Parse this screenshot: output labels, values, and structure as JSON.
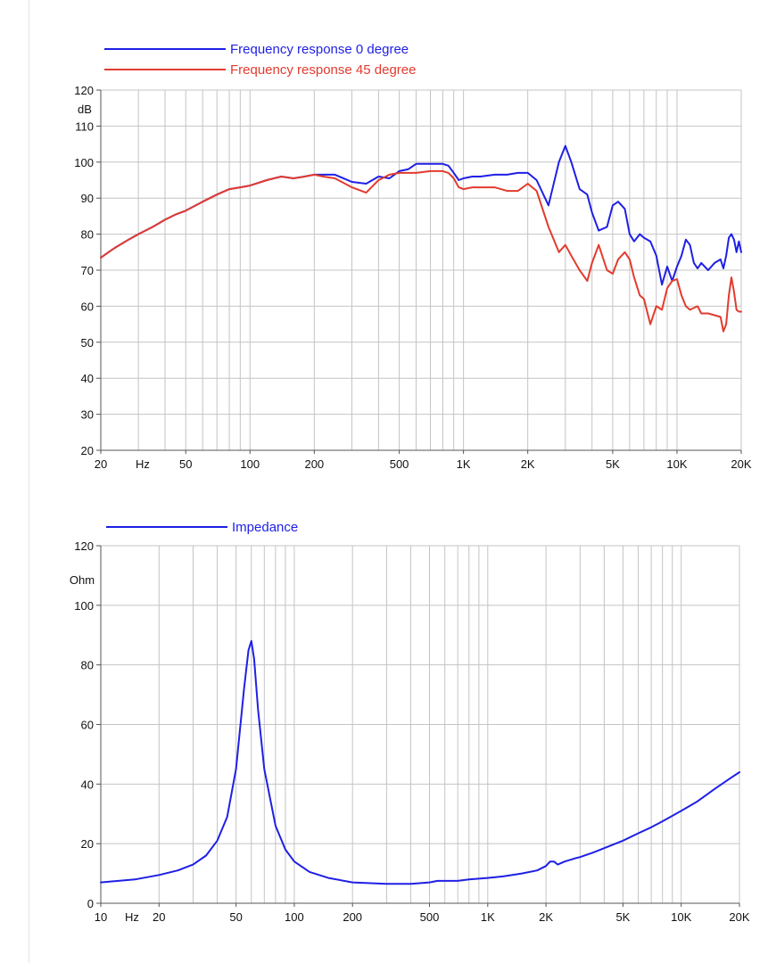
{
  "chart_data": [
    {
      "type": "line",
      "x_scale": "log",
      "xlim": [
        20,
        20000
      ],
      "ylim": [
        20,
        120
      ],
      "y_unit": "dB",
      "x_unit": "Hz",
      "y_ticks": [
        20,
        30,
        40,
        50,
        60,
        70,
        80,
        90,
        100,
        110,
        120
      ],
      "x_tick_labels": [
        {
          "x": 20,
          "label": "20"
        },
        {
          "x": 50,
          "label": "50"
        },
        {
          "x": 100,
          "label": "100"
        },
        {
          "x": 200,
          "label": "200"
        },
        {
          "x": 500,
          "label": "500"
        },
        {
          "x": 1000,
          "label": "1K"
        },
        {
          "x": 2000,
          "label": "2K"
        },
        {
          "x": 5000,
          "label": "5K"
        },
        {
          "x": 10000,
          "label": "10K"
        },
        {
          "x": 20000,
          "label": "20K"
        }
      ],
      "grid": true,
      "legend_position": "top-left",
      "series": [
        {
          "name": "Frequency response 0 degree",
          "color": "#1f1fe6",
          "x": [
            20,
            23,
            27,
            30,
            35,
            40,
            45,
            50,
            60,
            70,
            80,
            90,
            100,
            120,
            140,
            160,
            180,
            200,
            220,
            250,
            300,
            350,
            400,
            450,
            500,
            550,
            600,
            650,
            700,
            800,
            850,
            900,
            950,
            1000,
            1100,
            1200,
            1400,
            1600,
            1800,
            2000,
            2200,
            2500,
            2800,
            3000,
            3200,
            3500,
            3800,
            4000,
            4300,
            4700,
            5000,
            5300,
            5700,
            6000,
            6300,
            6700,
            7000,
            7500,
            8000,
            8500,
            9000,
            9500,
            10000,
            10500,
            11000,
            11500,
            12000,
            12500,
            13000,
            14000,
            15000,
            16000,
            16500,
            17000,
            17500,
            18000,
            18500,
            19000,
            19500,
            20000
          ],
          "y": [
            73.5,
            76,
            78.5,
            80,
            82,
            84,
            85.5,
            86.5,
            89,
            91,
            92.5,
            93,
            93.5,
            95,
            96,
            95.5,
            96,
            96.5,
            96.5,
            96.5,
            94.5,
            94,
            96,
            95.5,
            97.5,
            98,
            99.5,
            99.5,
            99.5,
            99.5,
            99,
            97,
            95,
            95.5,
            96,
            96,
            96.5,
            96.5,
            97,
            97,
            95,
            88,
            100,
            104.5,
            100,
            92.5,
            91,
            86,
            81,
            82,
            88,
            89,
            87,
            80,
            78,
            80,
            79,
            78,
            74,
            66,
            71,
            67,
            71,
            74,
            78.5,
            77,
            72,
            70.5,
            72,
            70,
            72,
            73,
            70.5,
            74,
            79,
            80,
            78.5,
            75,
            78,
            75
          ]
        },
        {
          "name": "Frequency response 45 degree",
          "color": "#e23b2e",
          "x": [
            20,
            23,
            27,
            30,
            35,
            40,
            45,
            50,
            60,
            70,
            80,
            90,
            100,
            120,
            140,
            160,
            180,
            200,
            220,
            250,
            300,
            350,
            400,
            450,
            500,
            600,
            700,
            800,
            850,
            900,
            950,
            1000,
            1100,
            1200,
            1400,
            1600,
            1800,
            2000,
            2200,
            2500,
            2800,
            3000,
            3200,
            3500,
            3800,
            4000,
            4300,
            4700,
            5000,
            5300,
            5700,
            6000,
            6300,
            6700,
            7000,
            7500,
            8000,
            8500,
            9000,
            9500,
            10000,
            10500,
            11000,
            11500,
            12000,
            12500,
            13000,
            14000,
            15000,
            16000,
            16500,
            17000,
            17500,
            18000,
            18500,
            19000,
            19500,
            20000
          ],
          "y": [
            73.5,
            76,
            78.5,
            80,
            82,
            84,
            85.5,
            86.5,
            89,
            91,
            92.5,
            93,
            93.5,
            95,
            96,
            95.5,
            96,
            96.5,
            96,
            95.5,
            93,
            91.5,
            95,
            96.5,
            97,
            97,
            97.5,
            97.5,
            97,
            95.5,
            93,
            92.5,
            93,
            93,
            93,
            92,
            92,
            94,
            92,
            82,
            75,
            77,
            74,
            70,
            67,
            72,
            77,
            70,
            69,
            73,
            75,
            73,
            68,
            63,
            62,
            55,
            60,
            59,
            65,
            67,
            67.5,
            63,
            60,
            59,
            59.5,
            60,
            58,
            58,
            57.5,
            57,
            53,
            55,
            63,
            68,
            64,
            59,
            58.5,
            58.5
          ]
        }
      ]
    },
    {
      "type": "line",
      "x_scale": "log",
      "xlim": [
        10,
        20000
      ],
      "ylim": [
        0,
        120
      ],
      "y_unit": "Ohm",
      "x_unit": "Hz",
      "y_ticks": [
        0,
        20,
        40,
        60,
        80,
        100,
        120
      ],
      "x_tick_labels": [
        {
          "x": 10,
          "label": "10"
        },
        {
          "x": 20,
          "label": "20"
        },
        {
          "x": 50,
          "label": "50"
        },
        {
          "x": 100,
          "label": "100"
        },
        {
          "x": 200,
          "label": "200"
        },
        {
          "x": 500,
          "label": "500"
        },
        {
          "x": 1000,
          "label": "1K"
        },
        {
          "x": 2000,
          "label": "2K"
        },
        {
          "x": 5000,
          "label": "5K"
        },
        {
          "x": 10000,
          "label": "10K"
        },
        {
          "x": 20000,
          "label": "20K"
        }
      ],
      "grid": true,
      "legend_position": "top-left",
      "series": [
        {
          "name": "Impedance",
          "color": "#1f1fe6",
          "x": [
            10,
            15,
            20,
            25,
            30,
            35,
            40,
            45,
            50,
            55,
            58,
            60,
            62,
            65,
            70,
            80,
            90,
            100,
            120,
            150,
            200,
            300,
            400,
            500,
            550,
            600,
            700,
            800,
            1000,
            1200,
            1500,
            1800,
            2000,
            2100,
            2200,
            2300,
            2500,
            2800,
            3000,
            3500,
            4000,
            5000,
            6000,
            7000,
            8000,
            10000,
            12000,
            15000,
            18000,
            20000
          ],
          "y": [
            7,
            8,
            9.5,
            11,
            13,
            16,
            21,
            29,
            45,
            72,
            85,
            88,
            82,
            65,
            45,
            26,
            18,
            14,
            10.5,
            8.5,
            7,
            6.5,
            6.5,
            7,
            7.5,
            7.5,
            7.5,
            8,
            8.5,
            9,
            10,
            11,
            12.5,
            14,
            14,
            13,
            14,
            15,
            15.5,
            17,
            18.5,
            21,
            23.5,
            25.5,
            27.5,
            31,
            34,
            38.5,
            42,
            44
          ]
        }
      ]
    }
  ]
}
